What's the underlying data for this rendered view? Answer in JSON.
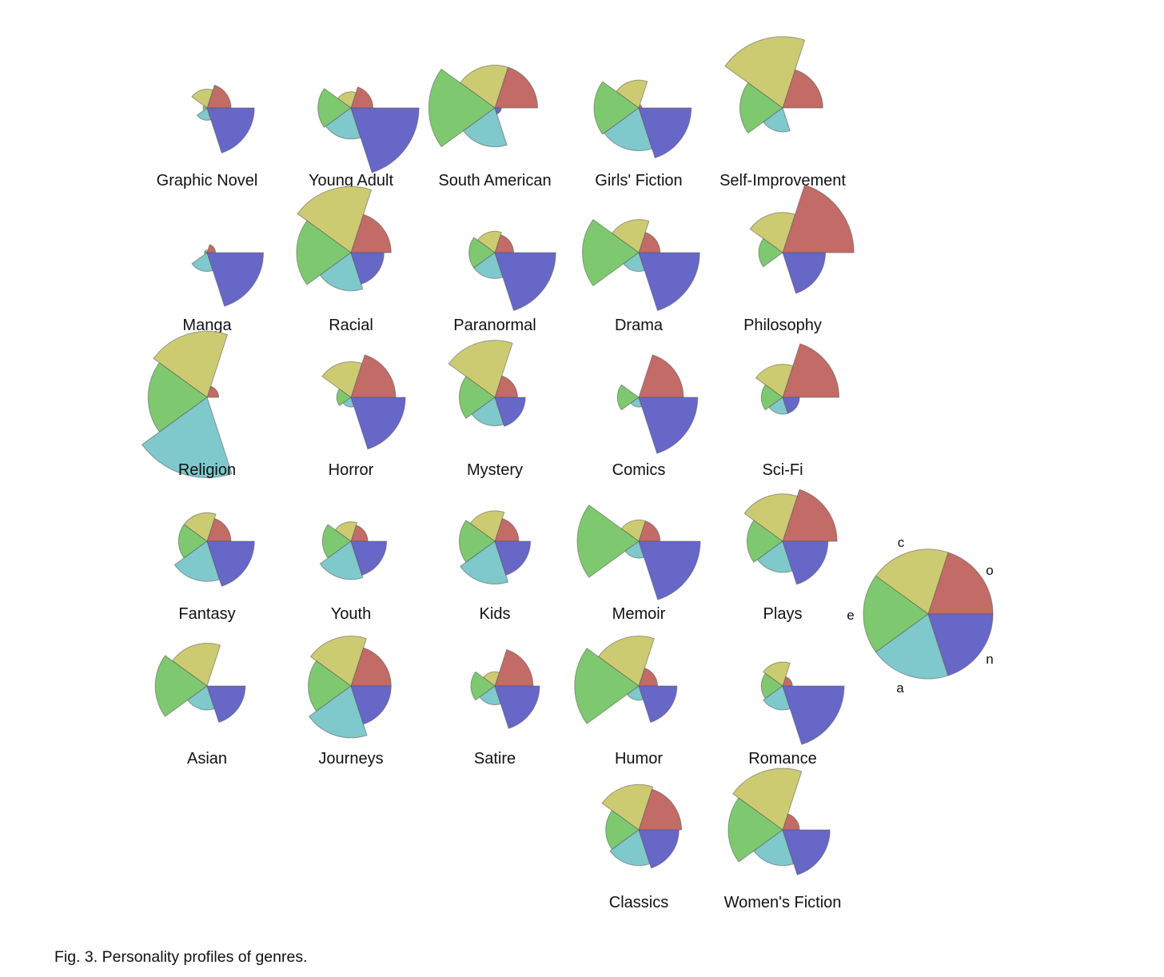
{
  "caption": "Fig. 3. Personality profiles of genres.",
  "chart_data": {
    "type": "polar-area",
    "title": "",
    "dimensions": [
      "o",
      "c",
      "e",
      "a",
      "n"
    ],
    "colors": {
      "o": "#c36b66",
      "c": "#cdcb72",
      "e": "#7ec96f",
      "a": "#7fc8cb",
      "n": "#6767c8"
    },
    "legend": {
      "dimension_labels": [
        "c",
        "o",
        "e",
        "n",
        "a"
      ],
      "reference_value": 1.0
    },
    "genres": [
      {
        "name": "Graphic Novel",
        "values": {
          "o": 0.37,
          "c": 0.29,
          "e": 0.06,
          "a": 0.19,
          "n": 0.73
        }
      },
      {
        "name": "Young Adult",
        "values": {
          "o": 0.34,
          "c": 0.25,
          "e": 0.51,
          "a": 0.48,
          "n": 1.05
        }
      },
      {
        "name": "South American",
        "values": {
          "o": 0.66,
          "c": 0.66,
          "e": 1.02,
          "a": 0.6,
          "n": 0.1
        }
      },
      {
        "name": "Girls' Fiction",
        "values": {
          "o": 0.05,
          "c": 0.43,
          "e": 0.69,
          "a": 0.66,
          "n": 0.81
        }
      },
      {
        "name": "Self-Improvement",
        "values": {
          "o": 0.62,
          "c": 1.1,
          "e": 0.66,
          "a": 0.37,
          "n": 0.0
        }
      },
      {
        "name": "Manga",
        "values": {
          "o": 0.13,
          "c": 0.04,
          "e": 0.04,
          "a": 0.29,
          "n": 0.87
        }
      },
      {
        "name": "Racial",
        "values": {
          "o": 0.62,
          "c": 1.02,
          "e": 0.84,
          "a": 0.59,
          "n": 0.51
        }
      },
      {
        "name": "Paranormal",
        "values": {
          "o": 0.29,
          "c": 0.33,
          "e": 0.4,
          "a": 0.4,
          "n": 0.94
        }
      },
      {
        "name": "Drama",
        "values": {
          "o": 0.33,
          "c": 0.51,
          "e": 0.87,
          "a": 0.29,
          "n": 0.94
        }
      },
      {
        "name": "Philosophy",
        "values": {
          "o": 1.1,
          "c": 0.62,
          "e": 0.37,
          "a": 0.0,
          "n": 0.66
        }
      },
      {
        "name": "Religion",
        "values": {
          "o": 0.18,
          "c": 1.02,
          "e": 0.91,
          "a": 1.24,
          "n": 0.0
        }
      },
      {
        "name": "Horror",
        "values": {
          "o": 0.69,
          "c": 0.55,
          "e": 0.22,
          "a": 0.15,
          "n": 0.84
        }
      },
      {
        "name": "Mystery",
        "values": {
          "o": 0.35,
          "c": 0.88,
          "e": 0.55,
          "a": 0.44,
          "n": 0.47
        }
      },
      {
        "name": "Comics",
        "values": {
          "o": 0.69,
          "c": 0.0,
          "e": 0.33,
          "a": 0.15,
          "n": 0.91
        }
      },
      {
        "name": "Sci-Fi",
        "values": {
          "o": 0.87,
          "c": 0.51,
          "e": 0.33,
          "a": 0.26,
          "n": 0.26
        }
      },
      {
        "name": "Fantasy",
        "values": {
          "o": 0.37,
          "c": 0.44,
          "e": 0.44,
          "a": 0.62,
          "n": 0.73
        }
      },
      {
        "name": "Youth",
        "values": {
          "o": 0.26,
          "c": 0.3,
          "e": 0.44,
          "a": 0.59,
          "n": 0.55
        }
      },
      {
        "name": "Kids",
        "values": {
          "o": 0.37,
          "c": 0.47,
          "e": 0.55,
          "a": 0.66,
          "n": 0.55
        }
      },
      {
        "name": "Memoir",
        "values": {
          "o": 0.33,
          "c": 0.33,
          "e": 0.95,
          "a": 0.26,
          "n": 0.95
        }
      },
      {
        "name": "Plays",
        "values": {
          "o": 0.84,
          "c": 0.73,
          "e": 0.55,
          "a": 0.48,
          "n": 0.7
        }
      },
      {
        "name": "Asian",
        "values": {
          "o": 0.0,
          "c": 0.66,
          "e": 0.8,
          "a": 0.37,
          "n": 0.59
        }
      },
      {
        "name": "Journeys",
        "values": {
          "o": 0.62,
          "c": 0.77,
          "e": 0.66,
          "a": 0.8,
          "n": 0.62
        }
      },
      {
        "name": "Satire",
        "values": {
          "o": 0.59,
          "c": 0.22,
          "e": 0.37,
          "a": 0.29,
          "n": 0.69
        }
      },
      {
        "name": "Humor",
        "values": {
          "o": 0.29,
          "c": 0.77,
          "e": 0.99,
          "a": 0.22,
          "n": 0.59
        }
      },
      {
        "name": "Romance",
        "values": {
          "o": 0.15,
          "c": 0.37,
          "e": 0.33,
          "a": 0.37,
          "n": 0.95
        }
      },
      {
        "name": "Classics",
        "values": {
          "o": 0.66,
          "c": 0.7,
          "e": 0.51,
          "a": 0.55,
          "n": 0.62
        }
      },
      {
        "name": "Women's Fiction",
        "values": {
          "o": 0.26,
          "c": 0.95,
          "e": 0.84,
          "a": 0.55,
          "n": 0.73
        }
      }
    ]
  }
}
